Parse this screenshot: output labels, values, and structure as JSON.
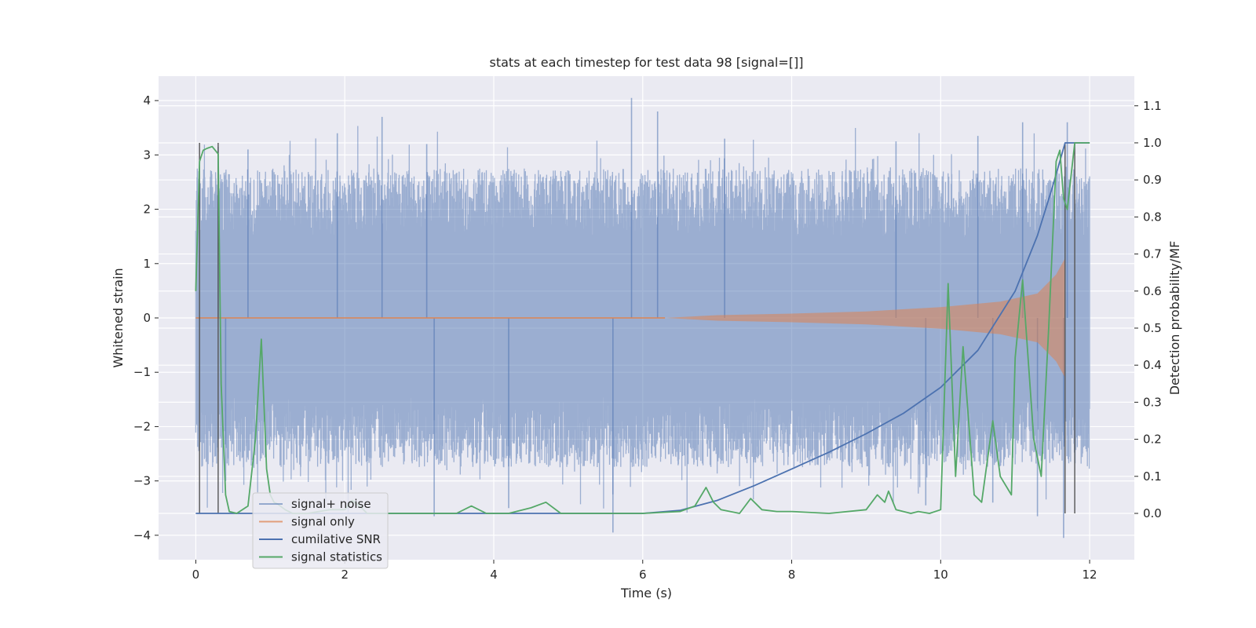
{
  "chart_data": {
    "type": "line",
    "title": "stats at each timestep for test data 98 [signal=[]]",
    "xlabel": "Time (s)",
    "ylabel_left": "Whitened strain",
    "ylabel_right": "Detection probability/MF",
    "xlim": [
      -0.5,
      12.6
    ],
    "ylim_left": [
      -4.45,
      4.45
    ],
    "ylim_right": [
      -0.125,
      1.18
    ],
    "x_ticks": [
      "0",
      "2",
      "4",
      "6",
      "8",
      "10",
      "12"
    ],
    "y_left_ticks": [
      "4",
      "3",
      "2",
      "1",
      "0",
      "−1",
      "−2",
      "−3",
      "−4"
    ],
    "y_right_ticks": [
      "1.1",
      "1.0",
      "0.9",
      "0.8",
      "0.7",
      "0.6",
      "0.5",
      "0.4",
      "0.3",
      "0.2",
      "0.1",
      "0.0"
    ],
    "grid": true,
    "legend_position": "lower-left",
    "legend": [
      "signal+ noise",
      "signal only",
      "cumilative SNR",
      "signal statistics"
    ],
    "colors": {
      "background": "#eaeaf2",
      "grid": "#ffffff",
      "signal_noise": "#4c72b0",
      "signal_only": "#dd8452",
      "cumulative_snr": "#4c72b0",
      "signal_statistics": "#55a868",
      "window": "#555555"
    },
    "series": [
      {
        "name": "signal+ noise",
        "axis": "left",
        "kind": "noise_band",
        "t_range": [
          0,
          12
        ],
        "typical_band": [
          -2.0,
          2.0
        ],
        "peak_values": [
          [
            0.3,
            3.15
          ],
          [
            0.7,
            3.1
          ],
          [
            1.9,
            3.4
          ],
          [
            2.5,
            3.7
          ],
          [
            3.1,
            3.2
          ],
          [
            5.85,
            4.05
          ],
          [
            6.2,
            3.8
          ],
          [
            7.1,
            3.3
          ],
          [
            9.4,
            3.25
          ],
          [
            10.5,
            3.35
          ],
          [
            11.1,
            3.6
          ],
          [
            11.7,
            3.6
          ],
          [
            0.4,
            -3.0
          ],
          [
            3.2,
            -3.65
          ],
          [
            4.2,
            -3.5
          ],
          [
            5.6,
            -3.95
          ],
          [
            9.8,
            -3.45
          ],
          [
            10.7,
            -3.4
          ],
          [
            11.3,
            -3.65
          ],
          [
            11.65,
            -4.05
          ]
        ]
      },
      {
        "name": "signal only",
        "axis": "left",
        "kind": "chirp",
        "t_range": [
          0,
          11.67
        ],
        "points": [
          [
            6.3,
            0.0
          ],
          [
            7.0,
            0.05
          ],
          [
            8.0,
            0.08
          ],
          [
            9.0,
            0.12
          ],
          [
            10.0,
            0.2
          ],
          [
            10.8,
            0.3
          ],
          [
            11.3,
            0.45
          ],
          [
            11.55,
            0.8
          ],
          [
            11.67,
            1.1
          ]
        ]
      },
      {
        "name": "cumilative SNR",
        "axis": "right",
        "x": [
          0,
          6.0,
          6.5,
          7.0,
          7.5,
          8.0,
          8.5,
          9.0,
          9.5,
          10.0,
          10.5,
          11.0,
          11.3,
          11.5,
          11.67,
          12.0
        ],
        "y": [
          0.0,
          0.0,
          0.008,
          0.035,
          0.075,
          0.12,
          0.165,
          0.215,
          0.27,
          0.34,
          0.44,
          0.6,
          0.75,
          0.88,
          1.0,
          1.0
        ]
      },
      {
        "name": "signal statistics",
        "axis": "right",
        "x": [
          0,
          0.05,
          0.1,
          0.15,
          0.22,
          0.3,
          0.34,
          0.4,
          0.45,
          0.55,
          0.7,
          0.8,
          0.88,
          0.95,
          1.0,
          1.05,
          1.1,
          1.2,
          1.3,
          1.5,
          1.8,
          2.0,
          2.1,
          2.2,
          2.3,
          2.4,
          2.6,
          3.0,
          3.5,
          3.7,
          3.9,
          4.2,
          4.5,
          4.7,
          4.9,
          5.1,
          5.5,
          6.0,
          6.5,
          6.7,
          6.85,
          6.95,
          7.05,
          7.3,
          7.45,
          7.6,
          7.8,
          8.0,
          8.5,
          9.0,
          9.15,
          9.25,
          9.3,
          9.4,
          9.6,
          9.7,
          9.85,
          10.0,
          10.1,
          10.2,
          10.3,
          10.45,
          10.55,
          10.7,
          10.8,
          10.95,
          11.0,
          11.1,
          11.25,
          11.35,
          11.45,
          11.55,
          11.6,
          11.65,
          11.7,
          11.8,
          12.0
        ],
        "y": [
          0.6,
          0.95,
          0.98,
          0.985,
          0.99,
          0.97,
          0.35,
          0.05,
          0.005,
          0.0,
          0.02,
          0.2,
          0.47,
          0.12,
          0.05,
          0.03,
          0.025,
          0.01,
          0.0,
          0.0,
          0.01,
          0.01,
          0.035,
          0.02,
          0.0,
          0.0,
          0.0,
          0.0,
          0.0,
          0.02,
          0.0,
          0.0,
          0.015,
          0.03,
          0.0,
          0.0,
          0.0,
          0.0,
          0.005,
          0.02,
          0.07,
          0.03,
          0.01,
          0.0,
          0.04,
          0.01,
          0.005,
          0.005,
          0.0,
          0.01,
          0.05,
          0.03,
          0.06,
          0.01,
          0.0,
          0.005,
          0.0,
          0.01,
          0.62,
          0.1,
          0.45,
          0.05,
          0.03,
          0.25,
          0.1,
          0.05,
          0.42,
          0.63,
          0.2,
          0.1,
          0.5,
          0.95,
          0.98,
          0.85,
          0.82,
          1.0,
          1.0
        ]
      }
    ],
    "detection_window": {
      "x": [
        0.05,
        0.3,
        11.67,
        11.8
      ],
      "y_bottom": 0.0,
      "y_top": 1.0
    }
  }
}
